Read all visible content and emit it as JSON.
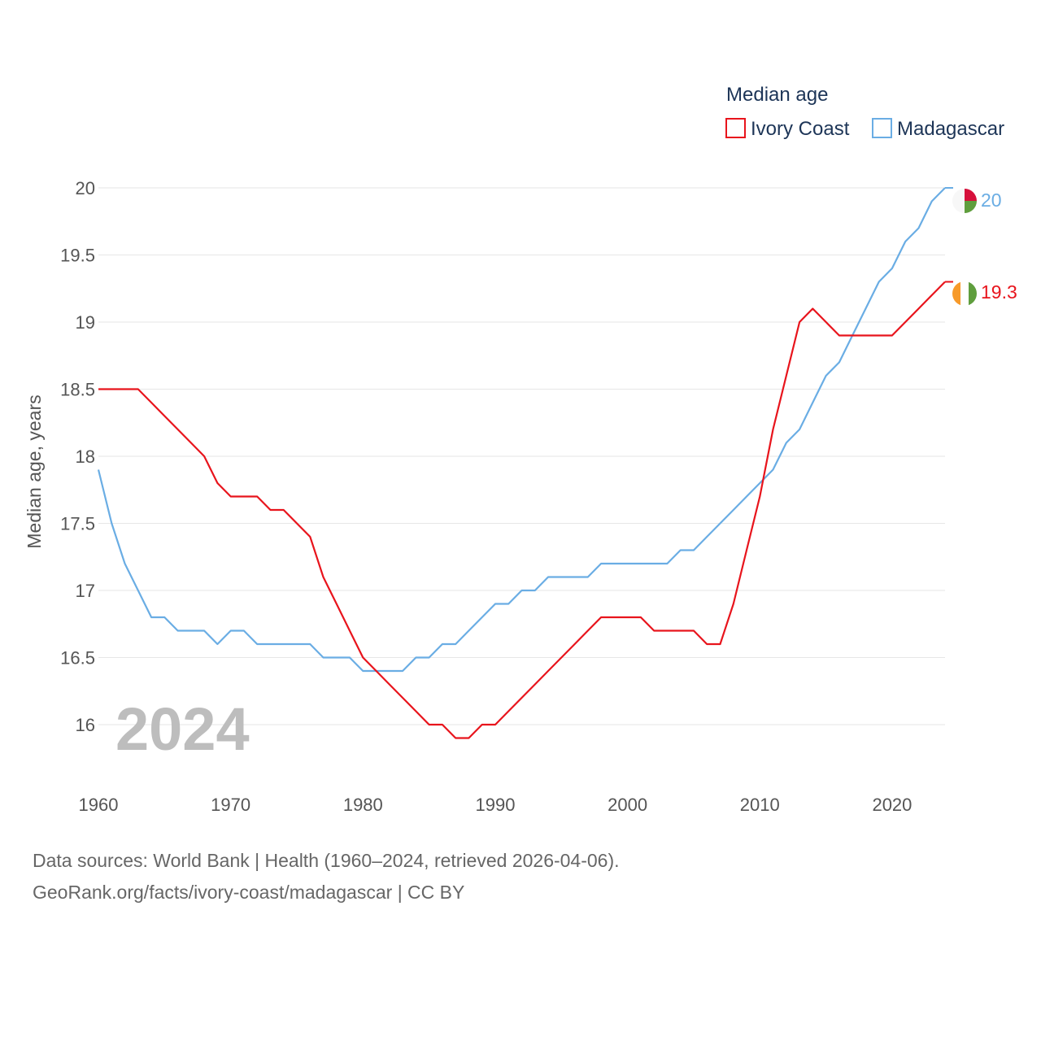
{
  "colors": {
    "ivory_coast": "#e8141c",
    "madagascar": "#6aade4",
    "grid": "#e6e6e6",
    "text": "#555555",
    "legend_text": "#1d3557"
  },
  "legend": {
    "title": "Median age",
    "items": [
      "Ivory Coast",
      "Madagascar"
    ]
  },
  "watermark_year": "2024",
  "footer": {
    "line1": "Data sources: World Bank | Health (1960–2024, retrieved 2026-04-06).",
    "line2": "GeoRank.org/facts/ivory-coast/madagascar | CC BY"
  },
  "chart_data": {
    "type": "line",
    "title": "Median age",
    "xlabel": "",
    "ylabel": "Median age, years",
    "xlim": [
      1960,
      2024
    ],
    "ylim": [
      15.6,
      20.2
    ],
    "x_ticks": [
      1960,
      1970,
      1980,
      1990,
      2000,
      2010,
      2020
    ],
    "y_ticks": [
      16,
      16.5,
      17,
      17.5,
      18,
      18.5,
      19,
      19.5,
      20
    ],
    "grid": true,
    "legend_position": "top-right",
    "x": [
      1960,
      1961,
      1962,
      1963,
      1964,
      1965,
      1966,
      1967,
      1968,
      1969,
      1970,
      1971,
      1972,
      1973,
      1974,
      1975,
      1976,
      1977,
      1978,
      1979,
      1980,
      1981,
      1982,
      1983,
      1984,
      1985,
      1986,
      1987,
      1988,
      1989,
      1990,
      1991,
      1992,
      1993,
      1994,
      1995,
      1996,
      1997,
      1998,
      1999,
      2000,
      2001,
      2002,
      2003,
      2004,
      2005,
      2006,
      2007,
      2008,
      2009,
      2010,
      2011,
      2012,
      2013,
      2014,
      2015,
      2016,
      2017,
      2018,
      2019,
      2020,
      2021,
      2022,
      2023,
      2024
    ],
    "series": [
      {
        "name": "Ivory Coast",
        "end_label": "19.3",
        "values": [
          18.5,
          18.5,
          18.5,
          18.5,
          18.4,
          18.3,
          18.2,
          18.1,
          18.0,
          17.8,
          17.7,
          17.7,
          17.7,
          17.6,
          17.6,
          17.5,
          17.4,
          17.1,
          16.9,
          16.7,
          16.5,
          16.4,
          16.3,
          16.2,
          16.1,
          16.0,
          16.0,
          15.9,
          15.9,
          16.0,
          16.0,
          16.1,
          16.2,
          16.3,
          16.4,
          16.5,
          16.6,
          16.7,
          16.8,
          16.8,
          16.8,
          16.8,
          16.7,
          16.7,
          16.7,
          16.7,
          16.6,
          16.6,
          16.9,
          17.3,
          17.7,
          18.2,
          18.6,
          19.0,
          19.1,
          19.0,
          18.9,
          18.9,
          18.9,
          18.9,
          18.9,
          19.0,
          19.1,
          19.2,
          19.3
        ]
      },
      {
        "name": "Madagascar",
        "end_label": "20",
        "values": [
          17.9,
          17.5,
          17.2,
          17.0,
          16.8,
          16.8,
          16.7,
          16.7,
          16.7,
          16.6,
          16.7,
          16.7,
          16.6,
          16.6,
          16.6,
          16.6,
          16.6,
          16.5,
          16.5,
          16.5,
          16.4,
          16.4,
          16.4,
          16.4,
          16.5,
          16.5,
          16.6,
          16.6,
          16.7,
          16.8,
          16.9,
          16.9,
          17.0,
          17.0,
          17.1,
          17.1,
          17.1,
          17.1,
          17.2,
          17.2,
          17.2,
          17.2,
          17.2,
          17.2,
          17.3,
          17.3,
          17.4,
          17.5,
          17.6,
          17.7,
          17.8,
          17.9,
          18.1,
          18.2,
          18.4,
          18.6,
          18.7,
          18.9,
          19.1,
          19.3,
          19.4,
          19.6,
          19.7,
          19.9,
          20.0
        ]
      }
    ]
  }
}
